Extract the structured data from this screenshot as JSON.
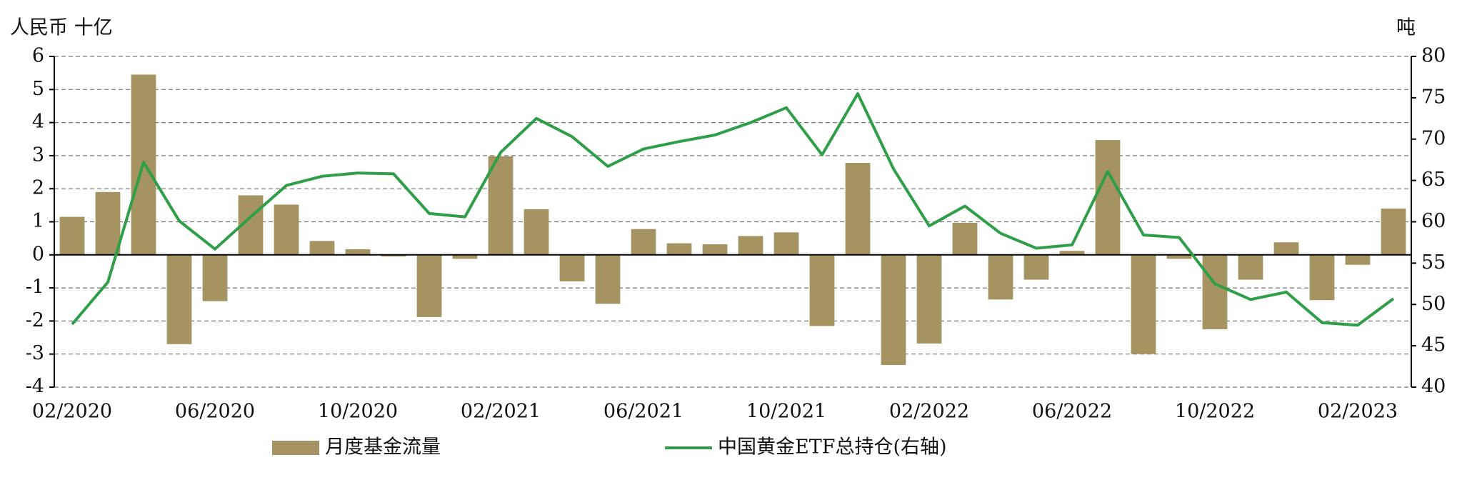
{
  "chart_data": {
    "type": "bar_line",
    "y_label": "人民币 十亿",
    "y2_label": "吨",
    "categories": [
      "02/2020",
      null,
      null,
      null,
      "06/2020",
      null,
      null,
      null,
      "10/2020",
      null,
      null,
      null,
      "02/2021",
      null,
      null,
      null,
      "06/2021",
      null,
      null,
      null,
      "10/2021",
      null,
      null,
      null,
      "02/2022",
      null,
      null,
      null,
      "06/2022",
      null,
      null,
      null,
      "10/2022",
      null,
      null,
      null,
      "02/2023",
      null
    ],
    "series": [
      {
        "name": "月度基金流量",
        "type": "bar",
        "color": "#a59461",
        "values": [
          1.15,
          1.9,
          5.45,
          -2.7,
          -1.4,
          1.8,
          1.52,
          0.42,
          0.17,
          -0.05,
          -1.88,
          -0.12,
          2.98,
          1.38,
          -0.8,
          -1.48,
          0.78,
          0.35,
          0.32,
          0.57,
          0.68,
          -2.15,
          2.78,
          -3.33,
          -2.68,
          0.97,
          -1.35,
          -0.75,
          0.12,
          3.47,
          -3.0,
          -0.12,
          -2.25,
          -0.75,
          0.38,
          -1.37,
          -0.3,
          1.4
        ]
      },
      {
        "name": "中国黄金ETF总持仓(右轴)",
        "type": "line",
        "axis": "y2",
        "color": "#2e9e48",
        "values": [
          47.6,
          52.7,
          67.2,
          60.1,
          56.7,
          60.6,
          64.4,
          65.5,
          65.9,
          65.8,
          61.0,
          60.6,
          68.4,
          72.5,
          70.3,
          66.7,
          68.8,
          69.7,
          70.5,
          72.0,
          73.8,
          68.1,
          75.5,
          66.4,
          59.5,
          61.9,
          58.6,
          56.8,
          57.2,
          66.1,
          58.4,
          58.1,
          52.5,
          50.6,
          51.5,
          47.8,
          47.5,
          50.7
        ]
      }
    ],
    "ylim": [
      -4,
      6
    ],
    "yticks": [
      -4,
      -3,
      -2,
      -1,
      0,
      1,
      2,
      3,
      4,
      5,
      6
    ],
    "y2lim": [
      40,
      80
    ],
    "y2ticks": [
      40,
      45,
      50,
      55,
      60,
      65,
      70,
      75,
      80
    ],
    "grid": true
  }
}
